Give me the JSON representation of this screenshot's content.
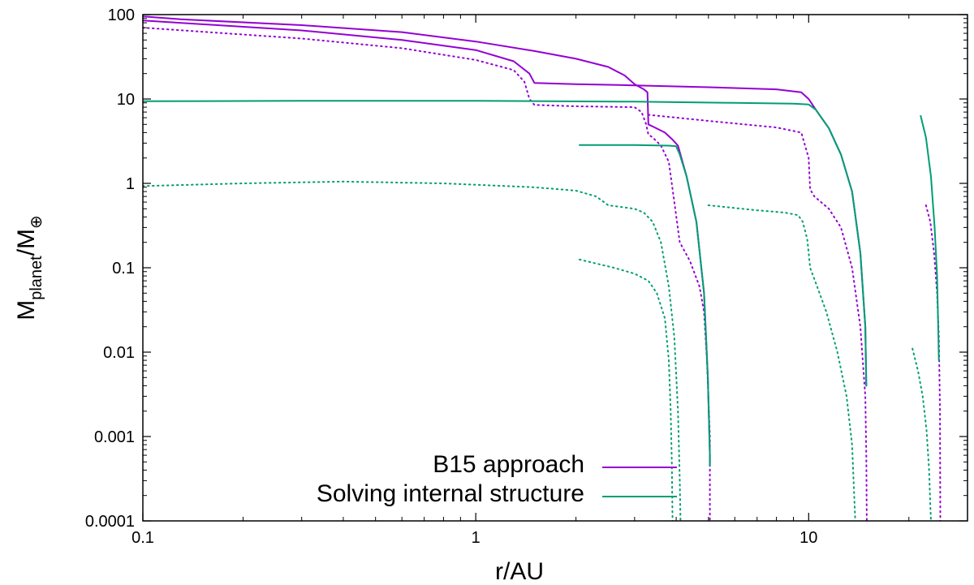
{
  "chart_data": {
    "type": "line",
    "xscale": "log",
    "yscale": "log",
    "xlim": [
      0.1,
      30
    ],
    "ylim": [
      0.0001,
      100
    ],
    "xlabel": "r/AU",
    "ylabel": {
      "main": "M",
      "sub1": "planet",
      "sep": "/M",
      "sub2": "⊕"
    },
    "xticks": [
      {
        "value": 0.1,
        "label": "0.1"
      },
      {
        "value": 1,
        "label": "1"
      },
      {
        "value": 10,
        "label": "10"
      }
    ],
    "yticks": [
      {
        "value": 0.0001,
        "label": "0.0001"
      },
      {
        "value": 0.001,
        "label": "0.001"
      },
      {
        "value": 0.01,
        "label": "0.01"
      },
      {
        "value": 0.1,
        "label": "0.1"
      },
      {
        "value": 1,
        "label": "1"
      },
      {
        "value": 10,
        "label": "10"
      },
      {
        "value": 100,
        "label": "100"
      }
    ],
    "grid": false,
    "legend_position": "bottom-right",
    "legend": [
      {
        "label": "B15 approach",
        "color": "#9400d3"
      },
      {
        "label": "Solving internal structure",
        "color": "#009e73"
      }
    ],
    "series": [
      {
        "group": "B15 approach",
        "style": "solid",
        "color": "#9400d3",
        "x": [
          0.1,
          0.13,
          0.3,
          0.6,
          1.0,
          1.5,
          2.0,
          2.5,
          2.8,
          3.0,
          3.2,
          3.28,
          3.3,
          3.45,
          3.7,
          3.9,
          4.05,
          4.3,
          4.6,
          4.85,
          4.98,
          5.05,
          5.05
        ],
        "y": [
          95,
          88,
          75,
          62,
          48,
          37,
          30,
          24,
          19,
          15,
          13,
          12,
          5.0,
          4.6,
          4.0,
          3.3,
          2.8,
          1.2,
          0.35,
          0.05,
          0.005,
          0.0006,
          0.00045
        ]
      },
      {
        "group": "B15 approach",
        "style": "solid",
        "color": "#9400d3",
        "x": [
          0.1,
          0.3,
          0.6,
          1.0,
          1.3,
          1.45,
          1.5,
          2.0,
          3.0,
          5.0,
          8.0,
          9.5,
          10.0,
          10.5,
          11.5,
          12.5,
          13.5,
          14.3,
          14.8,
          14.9
        ],
        "y": [
          85,
          65,
          50,
          38,
          28,
          20,
          15.5,
          15,
          14.5,
          13.8,
          13,
          12,
          10,
          7.5,
          4.5,
          2.2,
          0.8,
          0.15,
          0.02,
          0.004
        ]
      },
      {
        "group": "B15 approach",
        "style": "dotted",
        "color": "#9400d3",
        "x": [
          0.1,
          0.3,
          0.6,
          1.0,
          1.3,
          1.4,
          1.45,
          1.5,
          2.0,
          3.0,
          3.15,
          3.25,
          3.3,
          3.4,
          3.6,
          3.8,
          3.95,
          4.1,
          4.4,
          4.7,
          4.85,
          4.95,
          5.05,
          5.05
        ],
        "y": [
          70,
          52,
          40,
          29,
          22,
          16,
          10,
          8.5,
          8.2,
          8.0,
          7.0,
          5.0,
          3.8,
          3.5,
          2.8,
          1.8,
          0.6,
          0.2,
          0.12,
          0.06,
          0.03,
          0.008,
          0.001,
          0.0001
        ]
      },
      {
        "group": "B15 approach",
        "style": "dotted",
        "color": "#9400d3",
        "x": [
          3.3,
          5.0,
          8.0,
          9.5,
          10.0,
          10.1,
          10.4,
          11.5,
          12.5,
          13.5,
          14.3,
          14.8,
          14.9,
          14.95
        ],
        "y": [
          6.5,
          5.5,
          4.6,
          4.0,
          2.0,
          0.85,
          0.7,
          0.5,
          0.3,
          0.1,
          0.02,
          0.003,
          0.0006,
          0.0001
        ]
      },
      {
        "group": "B15 approach",
        "style": "dotted",
        "color": "#9400d3",
        "x": [
          22.5,
          23.2,
          23.8,
          24.3,
          24.6,
          24.8,
          24.85
        ],
        "y": [
          0.55,
          0.35,
          0.15,
          0.05,
          0.015,
          0.002,
          0.0001
        ]
      },
      {
        "group": "Solving internal structure",
        "style": "solid",
        "color": "#009e73",
        "x": [
          0.1,
          0.3,
          1.0,
          3.0,
          6.0,
          9.0,
          10.0,
          10.5,
          11.5,
          12.5,
          13.5,
          14.3,
          14.8,
          14.9
        ],
        "y": [
          9.4,
          9.5,
          9.5,
          9.3,
          9.0,
          8.8,
          8.6,
          7.5,
          4.5,
          2.2,
          0.8,
          0.15,
          0.02,
          0.004
        ]
      },
      {
        "group": "Solving internal structure",
        "style": "solid",
        "color": "#009e73",
        "x": [
          2.05,
          3.0,
          3.8,
          4.0,
          4.1,
          4.3,
          4.6,
          4.85,
          4.98,
          5.05,
          5.05
        ],
        "y": [
          2.85,
          2.85,
          2.8,
          2.75,
          2.2,
          1.2,
          0.35,
          0.05,
          0.005,
          0.0006,
          0.00045
        ]
      },
      {
        "group": "Solving internal structure",
        "style": "solid",
        "color": "#009e73",
        "x": [
          21.7,
          22.5,
          23.3,
          23.9,
          24.3,
          24.5,
          24.6
        ],
        "y": [
          6.3,
          3.5,
          1.2,
          0.3,
          0.08,
          0.02,
          0.008
        ]
      },
      {
        "group": "Solving internal structure",
        "style": "dotted",
        "color": "#009e73",
        "x": [
          0.1,
          0.2,
          0.4,
          0.8,
          1.5,
          2.0,
          2.3,
          2.5,
          3.0,
          3.2,
          3.4,
          3.6,
          3.8,
          3.95,
          4.05,
          4.1,
          4.12
        ],
        "y": [
          0.93,
          1.0,
          1.05,
          1.0,
          0.9,
          0.82,
          0.7,
          0.55,
          0.5,
          0.45,
          0.35,
          0.2,
          0.06,
          0.015,
          0.002,
          0.0003,
          0.0001
        ]
      },
      {
        "group": "Solving internal structure",
        "style": "dotted",
        "color": "#009e73",
        "x": [
          2.05,
          2.6,
          3.0,
          3.3,
          3.5,
          3.7,
          3.8,
          3.85,
          3.88,
          3.9
        ],
        "y": [
          0.125,
          0.1,
          0.085,
          0.07,
          0.05,
          0.025,
          0.008,
          0.002,
          0.0005,
          0.0001
        ]
      },
      {
        "group": "Solving internal structure",
        "style": "dotted",
        "color": "#009e73",
        "x": [
          5.0,
          7.0,
          8.5,
          9.3,
          9.6,
          9.9,
          10.0,
          10.1,
          10.6,
          11.3,
          12.2,
          13.0,
          13.5,
          13.7,
          13.8
        ],
        "y": [
          0.55,
          0.48,
          0.45,
          0.42,
          0.35,
          0.22,
          0.15,
          0.1,
          0.06,
          0.03,
          0.01,
          0.003,
          0.0008,
          0.0002,
          0.0001
        ]
      },
      {
        "group": "Solving internal structure",
        "style": "dotted",
        "color": "#009e73",
        "x": [
          20.5,
          21.3,
          22.0,
          22.6,
          23.0,
          23.2,
          23.3
        ],
        "y": [
          0.011,
          0.006,
          0.003,
          0.0012,
          0.0004,
          0.00015,
          0.0001
        ]
      }
    ]
  }
}
